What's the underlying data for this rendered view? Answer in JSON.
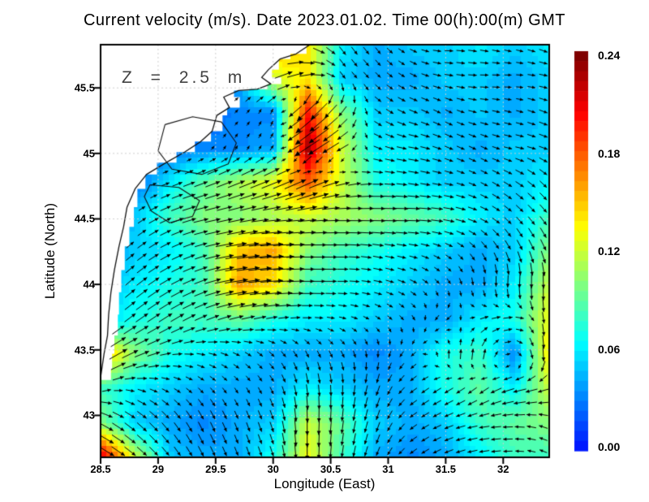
{
  "chart_data": {
    "type": "heatmap",
    "subtype": "vector-field-quiver-map",
    "title": "Current velocity (m/s). Date 2023.01.02. Time 00(h):00(m) GMT",
    "annotation": "Z = 2.5 m",
    "xlabel": "Longitude (East)",
    "ylabel": "Latitude (North)",
    "units": "m/s",
    "xlim": [
      28.5,
      32.4
    ],
    "ylim": [
      42.68,
      45.83
    ],
    "xticks": [
      28.5,
      29,
      29.5,
      30,
      30.5,
      31,
      31.5,
      32
    ],
    "yticks": [
      43,
      43.5,
      44,
      44.5,
      45,
      45.5
    ],
    "grid": true,
    "colorbar": {
      "min": 0.0,
      "max": 0.24,
      "tick_labels": [
        "0.24",
        "0.18",
        "0.12",
        "0.06",
        "0.00"
      ],
      "tick_values": [
        0.24,
        0.18,
        0.12,
        0.06,
        0.0
      ],
      "colormap": "jet",
      "color_low": "#0026ff",
      "color_mid": "#cqff33",
      "color_high": "#8b0000"
    },
    "grid_lons": [
      28.5,
      28.8,
      29.1,
      29.4,
      29.7,
      30.0,
      30.3,
      30.6,
      30.9,
      31.2,
      31.5,
      31.8,
      32.1,
      32.4
    ],
    "grid_lats": [
      45.83,
      45.57,
      45.31,
      45.04,
      44.78,
      44.52,
      44.26,
      43.99,
      43.73,
      43.47,
      43.21,
      42.94,
      42.68
    ],
    "magnitude": [
      [
        0.02,
        0.02,
        0.02,
        0.02,
        0.05,
        0.16,
        0.14,
        0.06,
        0.04,
        0.05,
        0.05,
        0.06,
        0.05,
        0.06
      ],
      [
        0.02,
        0.02,
        0.02,
        0.02,
        0.04,
        0.12,
        0.14,
        0.05,
        0.04,
        0.04,
        0.05,
        0.05,
        0.04,
        0.05
      ],
      [
        0.02,
        0.02,
        0.02,
        0.02,
        0.03,
        0.03,
        0.2,
        0.1,
        0.05,
        0.05,
        0.04,
        0.05,
        0.04,
        0.05
      ],
      [
        0.02,
        0.02,
        0.02,
        0.03,
        0.03,
        0.04,
        0.23,
        0.12,
        0.06,
        0.06,
        0.05,
        0.04,
        0.05,
        0.05
      ],
      [
        0.02,
        0.02,
        0.06,
        0.09,
        0.11,
        0.13,
        0.18,
        0.12,
        0.07,
        0.06,
        0.05,
        0.05,
        0.05,
        0.06
      ],
      [
        0.02,
        0.05,
        0.08,
        0.1,
        0.1,
        0.11,
        0.12,
        0.11,
        0.1,
        0.09,
        0.08,
        0.06,
        0.05,
        0.08
      ],
      [
        0.03,
        0.05,
        0.06,
        0.08,
        0.15,
        0.16,
        0.1,
        0.08,
        0.07,
        0.06,
        0.05,
        0.04,
        0.05,
        0.1
      ],
      [
        0.04,
        0.06,
        0.07,
        0.08,
        0.16,
        0.14,
        0.08,
        0.07,
        0.06,
        0.05,
        0.04,
        0.04,
        0.06,
        0.12
      ],
      [
        0.05,
        0.07,
        0.08,
        0.08,
        0.09,
        0.07,
        0.06,
        0.06,
        0.05,
        0.04,
        0.04,
        0.06,
        0.07,
        0.13
      ],
      [
        0.16,
        0.1,
        0.07,
        0.06,
        0.05,
        0.04,
        0.04,
        0.04,
        0.03,
        0.04,
        0.07,
        0.08,
        0.03,
        0.14
      ],
      [
        0.08,
        0.06,
        0.05,
        0.04,
        0.04,
        0.04,
        0.06,
        0.05,
        0.04,
        0.04,
        0.07,
        0.09,
        0.06,
        0.12
      ],
      [
        0.1,
        0.05,
        0.04,
        0.03,
        0.04,
        0.05,
        0.12,
        0.09,
        0.05,
        0.04,
        0.05,
        0.08,
        0.09,
        0.1
      ],
      [
        0.22,
        0.12,
        0.05,
        0.04,
        0.04,
        0.07,
        0.13,
        0.08,
        0.04,
        0.03,
        0.04,
        0.06,
        0.08,
        0.08
      ]
    ],
    "u": [
      [
        0,
        0,
        0,
        0,
        0.04,
        0.1,
        0.08,
        0.04,
        0.03,
        0.04,
        0.05,
        0.05,
        0.04,
        0.05
      ],
      [
        0,
        0,
        0,
        0,
        0.03,
        0.11,
        0.09,
        0.03,
        0.03,
        0.04,
        0.05,
        0.05,
        0.04,
        0.05
      ],
      [
        0,
        0,
        0,
        0,
        0.02,
        0.01,
        -0.13,
        -0.05,
        0.04,
        0.05,
        0.04,
        0.05,
        0.04,
        0.05
      ],
      [
        0,
        0,
        0,
        0.01,
        0.01,
        0.02,
        -0.15,
        -0.07,
        0.05,
        0.06,
        0.05,
        0.04,
        0.05,
        0.05
      ],
      [
        0,
        0,
        0.05,
        0.08,
        0.1,
        0.12,
        0.13,
        0.08,
        0.06,
        0.06,
        0.05,
        0.04,
        0.05,
        0.04
      ],
      [
        0,
        0.04,
        0.07,
        0.09,
        0.09,
        0.1,
        0.11,
        0.1,
        0.09,
        0.08,
        0.07,
        0.05,
        0.04,
        0.04
      ],
      [
        0.02,
        0.05,
        0.06,
        0.07,
        0.13,
        0.14,
        0.09,
        0.07,
        0.06,
        0.05,
        0.04,
        0.03,
        0.03,
        0.03
      ],
      [
        0.03,
        0.06,
        0.07,
        0.08,
        0.14,
        0.13,
        0.08,
        0.06,
        0.05,
        0.04,
        0.02,
        0.0,
        -0.01,
        0.0
      ],
      [
        0.04,
        0.07,
        0.08,
        0.07,
        0.08,
        0.06,
        0.05,
        0.04,
        0.03,
        0.02,
        -0.04,
        0.05,
        0.06,
        0.0
      ],
      [
        0.12,
        0.09,
        0.06,
        0.05,
        0.04,
        0.03,
        0.02,
        0.02,
        0.0,
        -0.03,
        0.0,
        0.01,
        0.03,
        0.0
      ],
      [
        0.05,
        0.05,
        0.04,
        0.03,
        0.02,
        0.02,
        0.01,
        0.0,
        -0.02,
        -0.04,
        -0.05,
        -0.05,
        -0.08,
        -0.06
      ],
      [
        0.08,
        0.06,
        0.04,
        0.03,
        0.02,
        0.02,
        0.0,
        -0.01,
        -0.02,
        -0.04,
        -0.05,
        -0.06,
        -0.06,
        -0.05
      ],
      [
        0.1,
        0.06,
        0.04,
        0.03,
        0.02,
        0.02,
        0.0,
        -0.01,
        -0.02,
        -0.04,
        -0.05,
        -0.06,
        -0.05,
        -0.04
      ]
    ],
    "v": [
      [
        0,
        0,
        0,
        0,
        0.02,
        0.03,
        -0.03,
        -0.05,
        -0.04,
        -0.02,
        0.0,
        -0.01,
        -0.01,
        -0.02
      ],
      [
        0,
        0,
        0,
        0,
        0.02,
        0.05,
        0.02,
        -0.04,
        -0.03,
        -0.02,
        -0.01,
        0.0,
        0.0,
        -0.01
      ],
      [
        0,
        0,
        0,
        0,
        0.02,
        0.03,
        -0.12,
        -0.06,
        -0.03,
        -0.02,
        -0.02,
        -0.01,
        -0.01,
        -0.02
      ],
      [
        0,
        0,
        0,
        0.01,
        0.02,
        0.03,
        -0.1,
        -0.04,
        -0.02,
        -0.01,
        -0.02,
        -0.02,
        -0.01,
        -0.02
      ],
      [
        0,
        0,
        0.02,
        0.03,
        0.04,
        0.05,
        0.06,
        0.02,
        0.0,
        -0.01,
        -0.01,
        -0.02,
        -0.03,
        -0.04
      ],
      [
        0,
        0.03,
        0.03,
        0.02,
        0.02,
        0.01,
        0.01,
        0.0,
        0.0,
        0.0,
        -0.01,
        -0.02,
        -0.04,
        -0.05
      ],
      [
        0.02,
        0.04,
        0.03,
        0.02,
        0.02,
        0.01,
        0.0,
        0.0,
        -0.01,
        -0.01,
        -0.02,
        -0.04,
        -0.06,
        -0.07
      ],
      [
        0.03,
        0.05,
        0.04,
        0.03,
        0.02,
        0.01,
        0.0,
        0.0,
        -0.01,
        -0.02,
        -0.03,
        -0.05,
        -0.08,
        -0.09
      ],
      [
        0.04,
        0.05,
        0.05,
        0.03,
        0.02,
        0.01,
        0.0,
        -0.01,
        -0.02,
        -0.03,
        -0.03,
        0.02,
        0.01,
        -0.08
      ],
      [
        0.08,
        0.04,
        0.01,
        -0.01,
        -0.02,
        -0.03,
        -0.04,
        -0.04,
        -0.04,
        -0.03,
        0.05,
        0.07,
        -0.01,
        -0.1
      ],
      [
        0.02,
        -0.01,
        -0.02,
        -0.03,
        -0.03,
        -0.04,
        -0.07,
        -0.06,
        -0.06,
        -0.03,
        -0.03,
        -0.04,
        -0.02,
        -0.02
      ],
      [
        -0.04,
        -0.05,
        -0.05,
        -0.06,
        -0.05,
        -0.06,
        -0.1,
        -0.08,
        -0.06,
        -0.03,
        -0.02,
        -0.01,
        0.0,
        0.02
      ],
      [
        -0.06,
        -0.05,
        -0.05,
        -0.06,
        -0.05,
        -0.06,
        -0.1,
        -0.07,
        -0.05,
        -0.03,
        -0.02,
        -0.01,
        0.0,
        0.02
      ]
    ],
    "land": {
      "coastline": [
        [
          30.32,
          45.83
        ],
        [
          30.2,
          45.76
        ],
        [
          30.06,
          45.72
        ],
        [
          29.96,
          45.64
        ],
        [
          29.9,
          45.58
        ],
        [
          29.98,
          45.53
        ],
        [
          29.86,
          45.49
        ],
        [
          29.7,
          45.48
        ],
        [
          29.57,
          45.43
        ],
        [
          29.62,
          45.35
        ],
        [
          29.51,
          45.29
        ],
        [
          29.47,
          45.17
        ],
        [
          29.37,
          45.09
        ],
        [
          29.23,
          45.01
        ],
        [
          29.07,
          44.93
        ],
        [
          28.9,
          44.84
        ],
        [
          28.8,
          44.73
        ],
        [
          28.73,
          44.59
        ],
        [
          28.7,
          44.44
        ],
        [
          28.66,
          44.29
        ],
        [
          28.62,
          44.11
        ],
        [
          28.59,
          43.94
        ],
        [
          28.57,
          43.77
        ],
        [
          28.56,
          43.61
        ],
        [
          28.53,
          43.47
        ],
        [
          28.51,
          43.35
        ],
        [
          28.5,
          43.29
        ]
      ],
      "mask_offset_lon": 0.09,
      "lakes": [
        [
          [
            29.06,
            45.22
          ],
          [
            29.3,
            45.28
          ],
          [
            29.55,
            45.24
          ],
          [
            29.68,
            45.08
          ],
          [
            29.61,
            44.92
          ],
          [
            29.38,
            44.84
          ],
          [
            29.12,
            44.88
          ],
          [
            29.0,
            45.02
          ],
          [
            29.06,
            45.22
          ]
        ],
        [
          [
            28.93,
            44.76
          ],
          [
            29.18,
            44.74
          ],
          [
            29.36,
            44.64
          ],
          [
            29.3,
            44.52
          ],
          [
            29.1,
            44.47
          ],
          [
            28.94,
            44.56
          ],
          [
            28.88,
            44.67
          ],
          [
            28.93,
            44.76
          ]
        ]
      ]
    }
  }
}
